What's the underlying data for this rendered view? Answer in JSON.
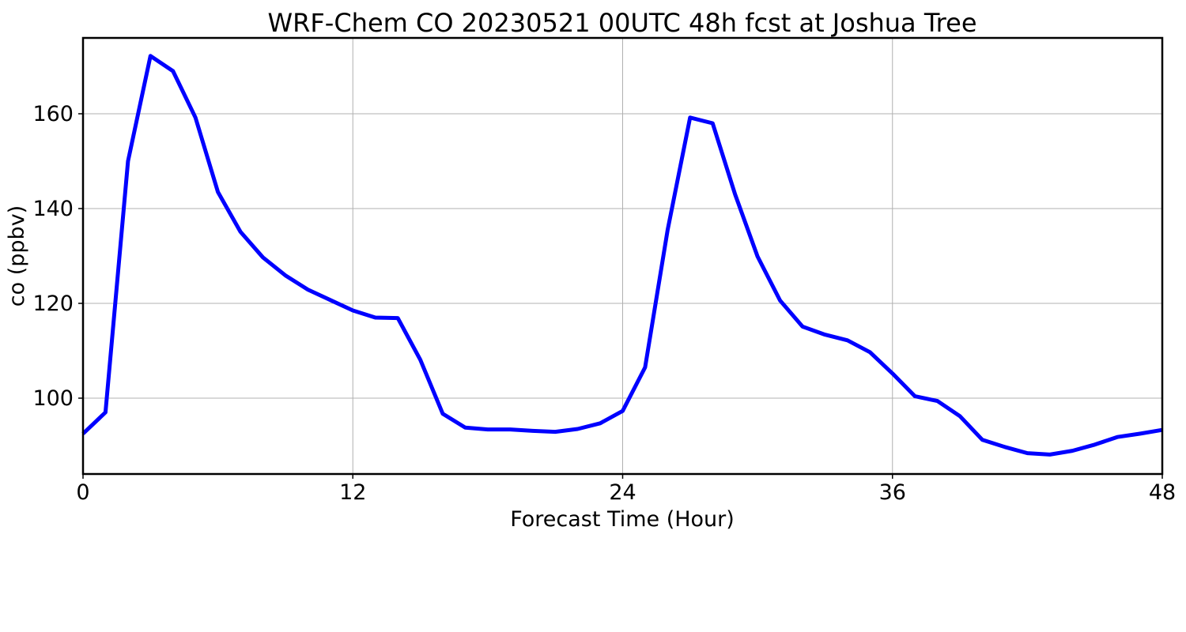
{
  "chart_data": {
    "type": "line",
    "title": "WRF-Chem CO  20230521 00UTC 48h fcst at Joshua Tree",
    "xlabel": "Forecast Time (Hour)",
    "ylabel": "co  (ppbv)",
    "xlim": [
      0,
      48
    ],
    "ylim": [
      84,
      176
    ],
    "xticks": [
      0,
      12,
      24,
      36,
      48
    ],
    "yticks": [
      100,
      120,
      140,
      160
    ],
    "grid": true,
    "legend": "none",
    "series": [
      {
        "color": "#0000ff",
        "x": [
          0,
          1,
          2,
          3,
          4,
          5,
          6,
          7,
          8,
          9,
          10,
          11,
          12,
          13,
          14,
          15,
          16,
          17,
          18,
          19,
          20,
          21,
          22,
          23,
          24,
          25,
          26,
          27,
          28,
          29,
          30,
          31,
          32,
          33,
          34,
          35,
          36,
          37,
          38,
          39,
          40,
          41,
          42,
          43,
          44,
          45,
          46,
          47,
          48
        ],
        "y": [
          92.5,
          97,
          150,
          172.2,
          169,
          159.2,
          143.5,
          135.1,
          129.7,
          125.9,
          122.9,
          120.7,
          118.5,
          117,
          116.9,
          108.1,
          96.7,
          93.8,
          93.4,
          93.4,
          93.1,
          92.9,
          93.5,
          94.7,
          97.3,
          106.5,
          135.5,
          159.2,
          158,
          143,
          129.9,
          120.6,
          115.1,
          113.4,
          112.2,
          109.7,
          105.2,
          100.4,
          99.4,
          96.2,
          91.2,
          89.7,
          88.4,
          88.1,
          88.9,
          90.2,
          91.8,
          92.5,
          93.3
        ]
      }
    ]
  }
}
